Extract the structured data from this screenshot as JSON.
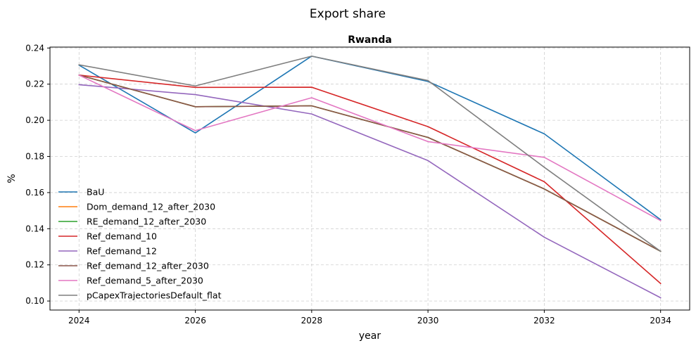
{
  "chart_data": {
    "type": "line",
    "suptitle": "Export share",
    "title": "Rwanda",
    "xlabel": "year",
    "ylabel": "%",
    "x": [
      2024,
      2026,
      2028,
      2030,
      2032,
      2034
    ],
    "xticks": [
      "2024",
      "2026",
      "2028",
      "2030",
      "2032",
      "2034"
    ],
    "yticks": [
      "0.10",
      "0.12",
      "0.14",
      "0.16",
      "0.18",
      "0.20",
      "0.22",
      "0.24"
    ],
    "xlim": [
      2023.5,
      2034.5
    ],
    "ylim": [
      0.095,
      0.2405
    ],
    "grid": true,
    "legend_position": "lower-left",
    "series": [
      {
        "name": "BaU",
        "color": "#1f77b4",
        "values": [
          0.2305,
          0.193,
          0.2355,
          0.2215,
          0.1925,
          0.145
        ]
      },
      {
        "name": "Dom_demand_12_after_2030",
        "color": "#ff7f0e",
        "values": [
          0.225,
          0.2075,
          0.208,
          0.1905,
          0.162,
          0.1275
        ]
      },
      {
        "name": "RE_demand_12_after_2030",
        "color": "#2ca02c",
        "values": [
          0.225,
          0.2075,
          0.208,
          0.1905,
          0.162,
          0.1275
        ]
      },
      {
        "name": "Ref_demand_10",
        "color": "#d62728",
        "values": [
          0.225,
          0.2182,
          0.2183,
          0.1965,
          0.166,
          0.1097
        ]
      },
      {
        "name": "Ref_demand_12",
        "color": "#9467bd",
        "values": [
          0.2197,
          0.2142,
          0.2035,
          0.1777,
          0.1353,
          0.1018
        ]
      },
      {
        "name": "Ref_demand_12_after_2030",
        "color": "#8c564b",
        "values": [
          0.225,
          0.2075,
          0.208,
          0.1905,
          0.162,
          0.1275
        ]
      },
      {
        "name": "Ref_demand_5_after_2030",
        "color": "#e377c2",
        "values": [
          0.225,
          0.1943,
          0.2125,
          0.1882,
          0.1795,
          0.1445
        ]
      },
      {
        "name": "pCapexTrajectoriesDefault_flat",
        "color": "#7f7f7f",
        "values": [
          0.2307,
          0.219,
          0.2355,
          0.222,
          0.174,
          0.1275
        ]
      }
    ]
  }
}
